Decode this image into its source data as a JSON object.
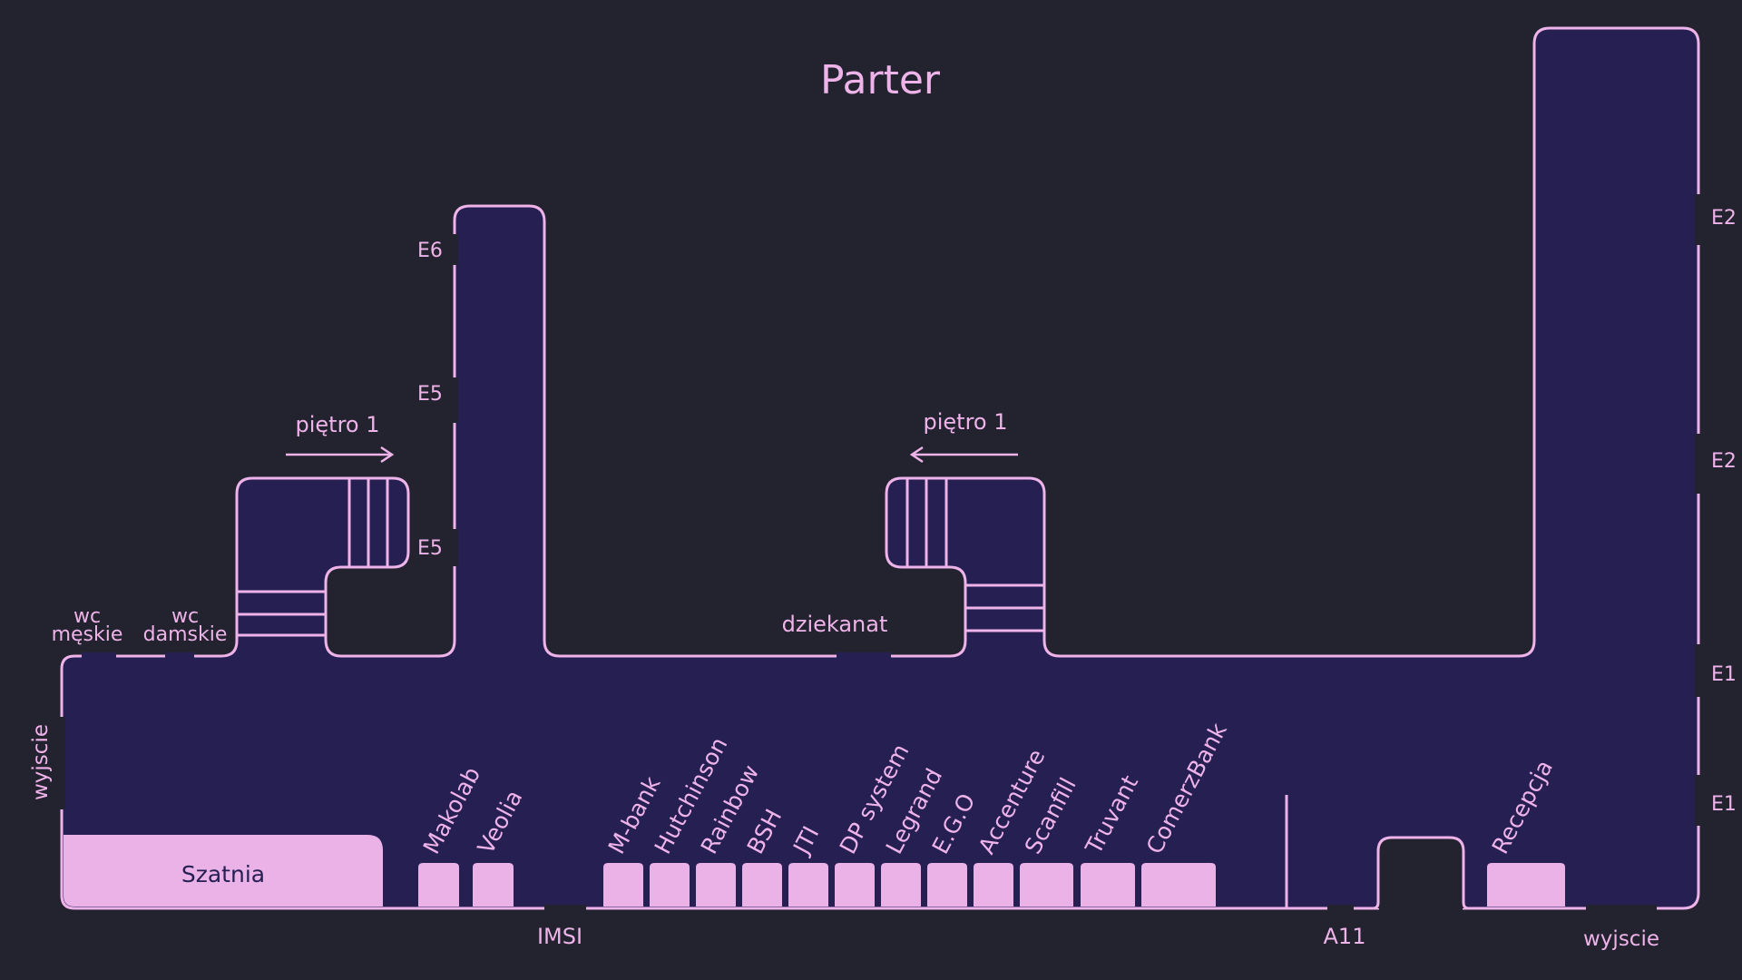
{
  "title": "Parter",
  "colors": {
    "background": "#23222f",
    "floor": "#261f52",
    "line": "#eeb3e9",
    "room_fill": "#eab2e7",
    "room_text": "#261f52"
  },
  "stairs_left": {
    "label": "piętro 1",
    "arrow": "right-arrow"
  },
  "stairs_right": {
    "label": "piętro 1",
    "arrow": "left-arrow"
  },
  "doors": {
    "e6": "E6",
    "e5_upper": "E5",
    "e5_lower": "E5",
    "e2_upper": "E2",
    "e2_lower": "E2",
    "e1_upper": "E1",
    "e1_lower": "E1"
  },
  "rooms": {
    "wc_men": {
      "line1": "wc",
      "line2": "męskie"
    },
    "wc_women": {
      "line1": "wc",
      "line2": "damskie"
    },
    "dean_office": "dziekanat",
    "cloakroom": "Szatnia"
  },
  "exits": {
    "left": "wyjscie",
    "bottom_right": "wyjscie"
  },
  "bottom_labels": {
    "imsi": "IMSI",
    "a11": "A11"
  },
  "booths": [
    {
      "label": "Makolab"
    },
    {
      "label": "Veolia"
    },
    {
      "label": "M-bank"
    },
    {
      "label": "Hutchinson"
    },
    {
      "label": "Rainbow"
    },
    {
      "label": "BSH"
    },
    {
      "label": "JTI"
    },
    {
      "label": "DP system"
    },
    {
      "label": "Legrand"
    },
    {
      "label": "E.G.O"
    },
    {
      "label": "Accenture"
    },
    {
      "label": "Scanfill"
    },
    {
      "label": "Truvant"
    },
    {
      "label": "ComerzBank"
    },
    {
      "label": "Recepcja"
    }
  ]
}
